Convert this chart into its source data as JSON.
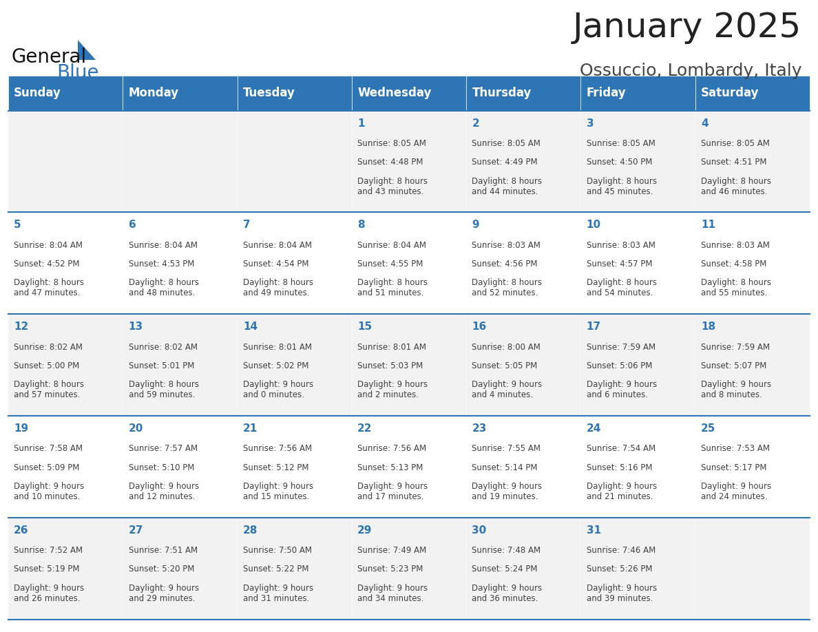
{
  "title": "January 2025",
  "subtitle": "Ossuccio, Lombardy, Italy",
  "header_color": "#2E75B6",
  "header_text_color": "#FFFFFF",
  "cell_bg_even": "#F2F2F2",
  "cell_bg_odd": "#FFFFFF",
  "day_number_color": "#2E75B6",
  "body_text_color": "#404040",
  "border_color": "#2E75B6",
  "weekdays": [
    "Sunday",
    "Monday",
    "Tuesday",
    "Wednesday",
    "Thursday",
    "Friday",
    "Saturday"
  ],
  "weeks": [
    [
      {
        "day": 0,
        "date": "",
        "sunrise": "",
        "sunset": "",
        "daylight": ""
      },
      {
        "day": 1,
        "date": "",
        "sunrise": "",
        "sunset": "",
        "daylight": ""
      },
      {
        "day": 2,
        "date": "",
        "sunrise": "",
        "sunset": "",
        "daylight": ""
      },
      {
        "day": 3,
        "date": "1",
        "sunrise": "8:05 AM",
        "sunset": "4:48 PM",
        "daylight": "8 hours\nand 43 minutes."
      },
      {
        "day": 4,
        "date": "2",
        "sunrise": "8:05 AM",
        "sunset": "4:49 PM",
        "daylight": "8 hours\nand 44 minutes."
      },
      {
        "day": 5,
        "date": "3",
        "sunrise": "8:05 AM",
        "sunset": "4:50 PM",
        "daylight": "8 hours\nand 45 minutes."
      },
      {
        "day": 6,
        "date": "4",
        "sunrise": "8:05 AM",
        "sunset": "4:51 PM",
        "daylight": "8 hours\nand 46 minutes."
      }
    ],
    [
      {
        "day": 0,
        "date": "5",
        "sunrise": "8:04 AM",
        "sunset": "4:52 PM",
        "daylight": "8 hours\nand 47 minutes."
      },
      {
        "day": 1,
        "date": "6",
        "sunrise": "8:04 AM",
        "sunset": "4:53 PM",
        "daylight": "8 hours\nand 48 minutes."
      },
      {
        "day": 2,
        "date": "7",
        "sunrise": "8:04 AM",
        "sunset": "4:54 PM",
        "daylight": "8 hours\nand 49 minutes."
      },
      {
        "day": 3,
        "date": "8",
        "sunrise": "8:04 AM",
        "sunset": "4:55 PM",
        "daylight": "8 hours\nand 51 minutes."
      },
      {
        "day": 4,
        "date": "9",
        "sunrise": "8:03 AM",
        "sunset": "4:56 PM",
        "daylight": "8 hours\nand 52 minutes."
      },
      {
        "day": 5,
        "date": "10",
        "sunrise": "8:03 AM",
        "sunset": "4:57 PM",
        "daylight": "8 hours\nand 54 minutes."
      },
      {
        "day": 6,
        "date": "11",
        "sunrise": "8:03 AM",
        "sunset": "4:58 PM",
        "daylight": "8 hours\nand 55 minutes."
      }
    ],
    [
      {
        "day": 0,
        "date": "12",
        "sunrise": "8:02 AM",
        "sunset": "5:00 PM",
        "daylight": "8 hours\nand 57 minutes."
      },
      {
        "day": 1,
        "date": "13",
        "sunrise": "8:02 AM",
        "sunset": "5:01 PM",
        "daylight": "8 hours\nand 59 minutes."
      },
      {
        "day": 2,
        "date": "14",
        "sunrise": "8:01 AM",
        "sunset": "5:02 PM",
        "daylight": "9 hours\nand 0 minutes."
      },
      {
        "day": 3,
        "date": "15",
        "sunrise": "8:01 AM",
        "sunset": "5:03 PM",
        "daylight": "9 hours\nand 2 minutes."
      },
      {
        "day": 4,
        "date": "16",
        "sunrise": "8:00 AM",
        "sunset": "5:05 PM",
        "daylight": "9 hours\nand 4 minutes."
      },
      {
        "day": 5,
        "date": "17",
        "sunrise": "7:59 AM",
        "sunset": "5:06 PM",
        "daylight": "9 hours\nand 6 minutes."
      },
      {
        "day": 6,
        "date": "18",
        "sunrise": "7:59 AM",
        "sunset": "5:07 PM",
        "daylight": "9 hours\nand 8 minutes."
      }
    ],
    [
      {
        "day": 0,
        "date": "19",
        "sunrise": "7:58 AM",
        "sunset": "5:09 PM",
        "daylight": "9 hours\nand 10 minutes."
      },
      {
        "day": 1,
        "date": "20",
        "sunrise": "7:57 AM",
        "sunset": "5:10 PM",
        "daylight": "9 hours\nand 12 minutes."
      },
      {
        "day": 2,
        "date": "21",
        "sunrise": "7:56 AM",
        "sunset": "5:12 PM",
        "daylight": "9 hours\nand 15 minutes."
      },
      {
        "day": 3,
        "date": "22",
        "sunrise": "7:56 AM",
        "sunset": "5:13 PM",
        "daylight": "9 hours\nand 17 minutes."
      },
      {
        "day": 4,
        "date": "23",
        "sunrise": "7:55 AM",
        "sunset": "5:14 PM",
        "daylight": "9 hours\nand 19 minutes."
      },
      {
        "day": 5,
        "date": "24",
        "sunrise": "7:54 AM",
        "sunset": "5:16 PM",
        "daylight": "9 hours\nand 21 minutes."
      },
      {
        "day": 6,
        "date": "25",
        "sunrise": "7:53 AM",
        "sunset": "5:17 PM",
        "daylight": "9 hours\nand 24 minutes."
      }
    ],
    [
      {
        "day": 0,
        "date": "26",
        "sunrise": "7:52 AM",
        "sunset": "5:19 PM",
        "daylight": "9 hours\nand 26 minutes."
      },
      {
        "day": 1,
        "date": "27",
        "sunrise": "7:51 AM",
        "sunset": "5:20 PM",
        "daylight": "9 hours\nand 29 minutes."
      },
      {
        "day": 2,
        "date": "28",
        "sunrise": "7:50 AM",
        "sunset": "5:22 PM",
        "daylight": "9 hours\nand 31 minutes."
      },
      {
        "day": 3,
        "date": "29",
        "sunrise": "7:49 AM",
        "sunset": "5:23 PM",
        "daylight": "9 hours\nand 34 minutes."
      },
      {
        "day": 4,
        "date": "30",
        "sunrise": "7:48 AM",
        "sunset": "5:24 PM",
        "daylight": "9 hours\nand 36 minutes."
      },
      {
        "day": 5,
        "date": "31",
        "sunrise": "7:46 AM",
        "sunset": "5:26 PM",
        "daylight": "9 hours\nand 39 minutes."
      },
      {
        "day": 6,
        "date": "",
        "sunrise": "",
        "sunset": "",
        "daylight": ""
      }
    ]
  ],
  "logo_text1": "General",
  "logo_text2": "Blue",
  "title_fontsize": 36,
  "subtitle_fontsize": 18,
  "header_fontsize": 12,
  "day_num_fontsize": 11,
  "cell_text_fontsize": 8.5
}
